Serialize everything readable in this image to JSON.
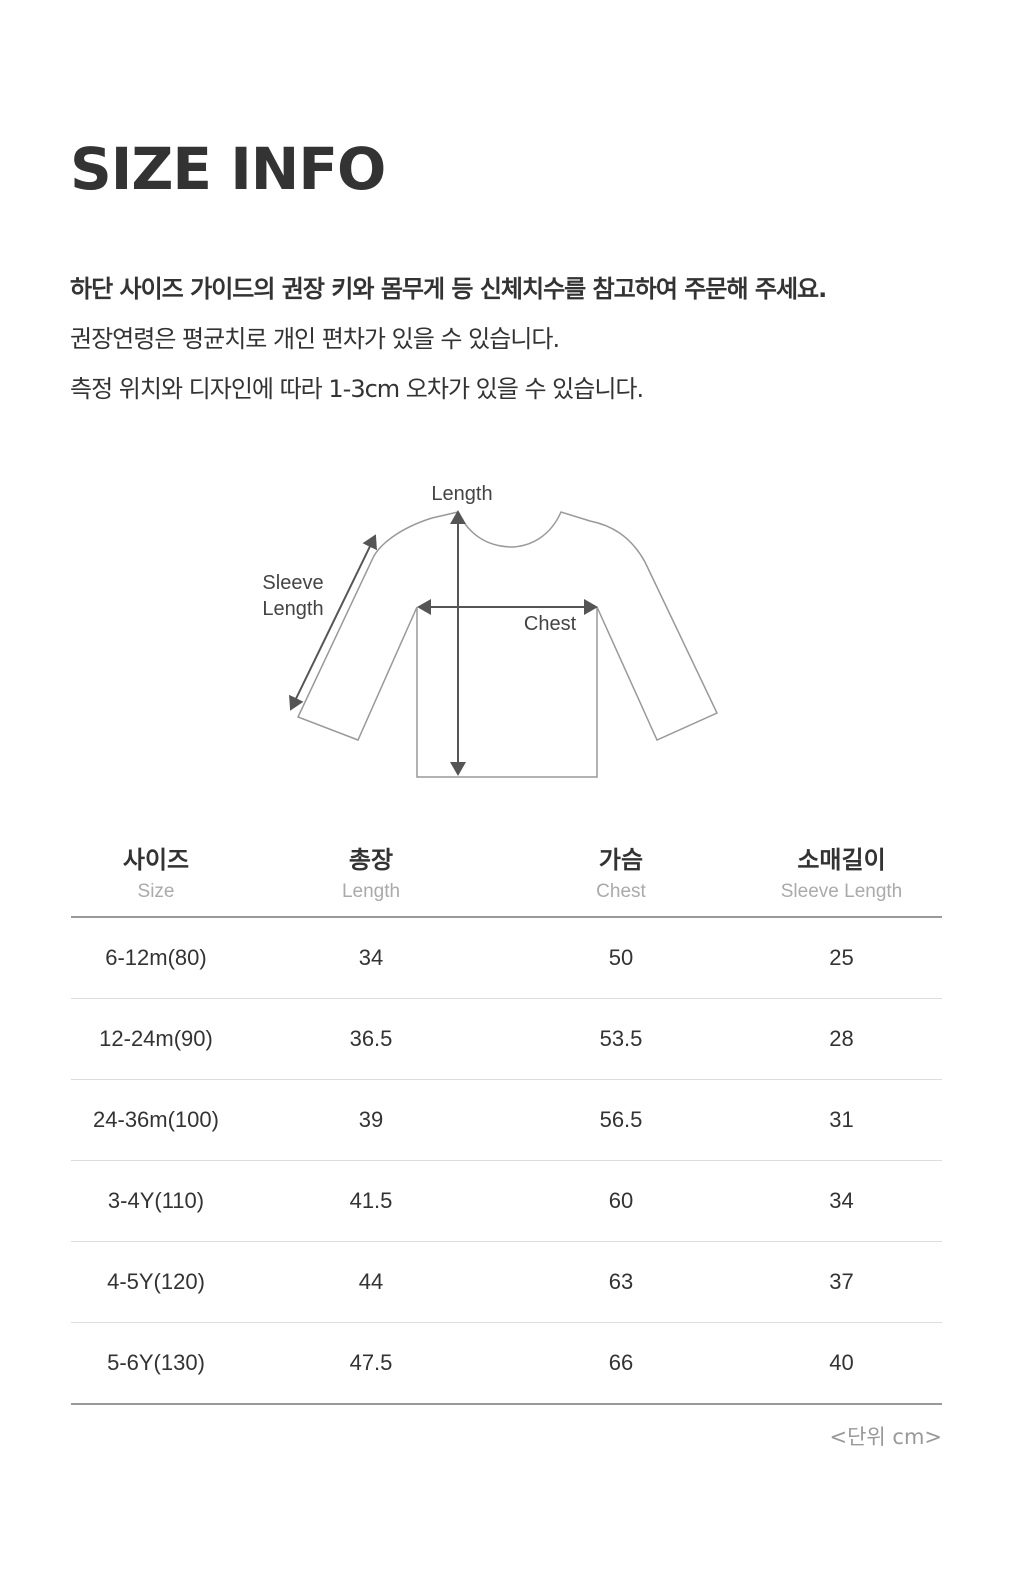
{
  "title": "SIZE INFO",
  "notes": [
    "하단 사이즈 가이드의 권장 키와 몸무게 등 신체치수를 참고하여 주문해 주세요.",
    "권장연령은 평균치로 개인 편차가 있을 수 있습니다.",
    "측정 위치와 디자인에 따라 1-3cm 오차가 있을 수 있습니다."
  ],
  "diagram": {
    "length_label": "Length",
    "sleeve_label_1": "Sleeve",
    "sleeve_label_2": "Length",
    "chest_label": "Chest"
  },
  "table": {
    "headers": [
      {
        "ko": "사이즈",
        "en": "Size"
      },
      {
        "ko": "총장",
        "en": "Length"
      },
      {
        "ko": "가슴",
        "en": "Chest"
      },
      {
        "ko": "소매길이",
        "en": "Sleeve Length"
      }
    ],
    "rows": [
      [
        "6-12m(80)",
        "34",
        "50",
        "25"
      ],
      [
        "12-24m(90)",
        "36.5",
        "53.5",
        "28"
      ],
      [
        "24-36m(100)",
        "39",
        "56.5",
        "31"
      ],
      [
        "3-4Y(110)",
        "41.5",
        "60",
        "34"
      ],
      [
        "4-5Y(120)",
        "44",
        "63",
        "37"
      ],
      [
        "5-6Y(130)",
        "47.5",
        "66",
        "40"
      ]
    ]
  },
  "unit": "<단위 cm>"
}
